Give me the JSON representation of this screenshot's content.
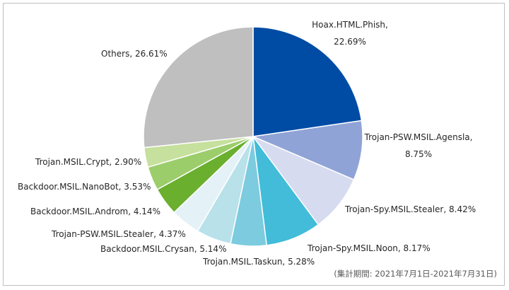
{
  "chart_data": {
    "type": "pie",
    "title": "",
    "slices": [
      {
        "label": "Hoax.HTML.Phish",
        "value": 22.69,
        "value_text": "22.69%",
        "color": "#004ca4"
      },
      {
        "label": "Trojan-PSW.MSIL.Agensla",
        "value": 8.75,
        "value_text": "8.75%",
        "color": "#8fa3d6"
      },
      {
        "label": "Trojan-Spy.MSIL.Stealer",
        "value": 8.42,
        "value_text": "8.42%",
        "color": "#d6dbf0"
      },
      {
        "label": "Trojan-Spy.MSIL.Noon",
        "value": 8.17,
        "value_text": "8.17%",
        "color": "#42bcd9"
      },
      {
        "label": "Trojan.MSIL.Taskun",
        "value": 5.28,
        "value_text": "5.28%",
        "color": "#7ccbdf"
      },
      {
        "label": "Backdoor.MSIL.Crysan",
        "value": 5.14,
        "value_text": "5.14%",
        "color": "#b8e1ea"
      },
      {
        "label": "Trojan-PSW.MSIL.Stealer",
        "value": 4.37,
        "value_text": "4.37%",
        "color": "#e4f1f6"
      },
      {
        "label": "Backdoor.MSIL.Androm",
        "value": 4.14,
        "value_text": "4.14%",
        "color": "#6aaf2e"
      },
      {
        "label": "Backdoor.MSIL.NanoBot",
        "value": 3.53,
        "value_text": "3.53%",
        "color": "#9ccd6b"
      },
      {
        "label": "Trojan.MSIL.Crypt",
        "value": 2.9,
        "value_text": "2.90%",
        "color": "#c6e09d"
      },
      {
        "label": "Others",
        "value": 26.61,
        "value_text": "26.61%",
        "color": "#bfbfbf"
      }
    ]
  },
  "note": "(集計期間: 2021年7月1日-2021年7月31日)"
}
